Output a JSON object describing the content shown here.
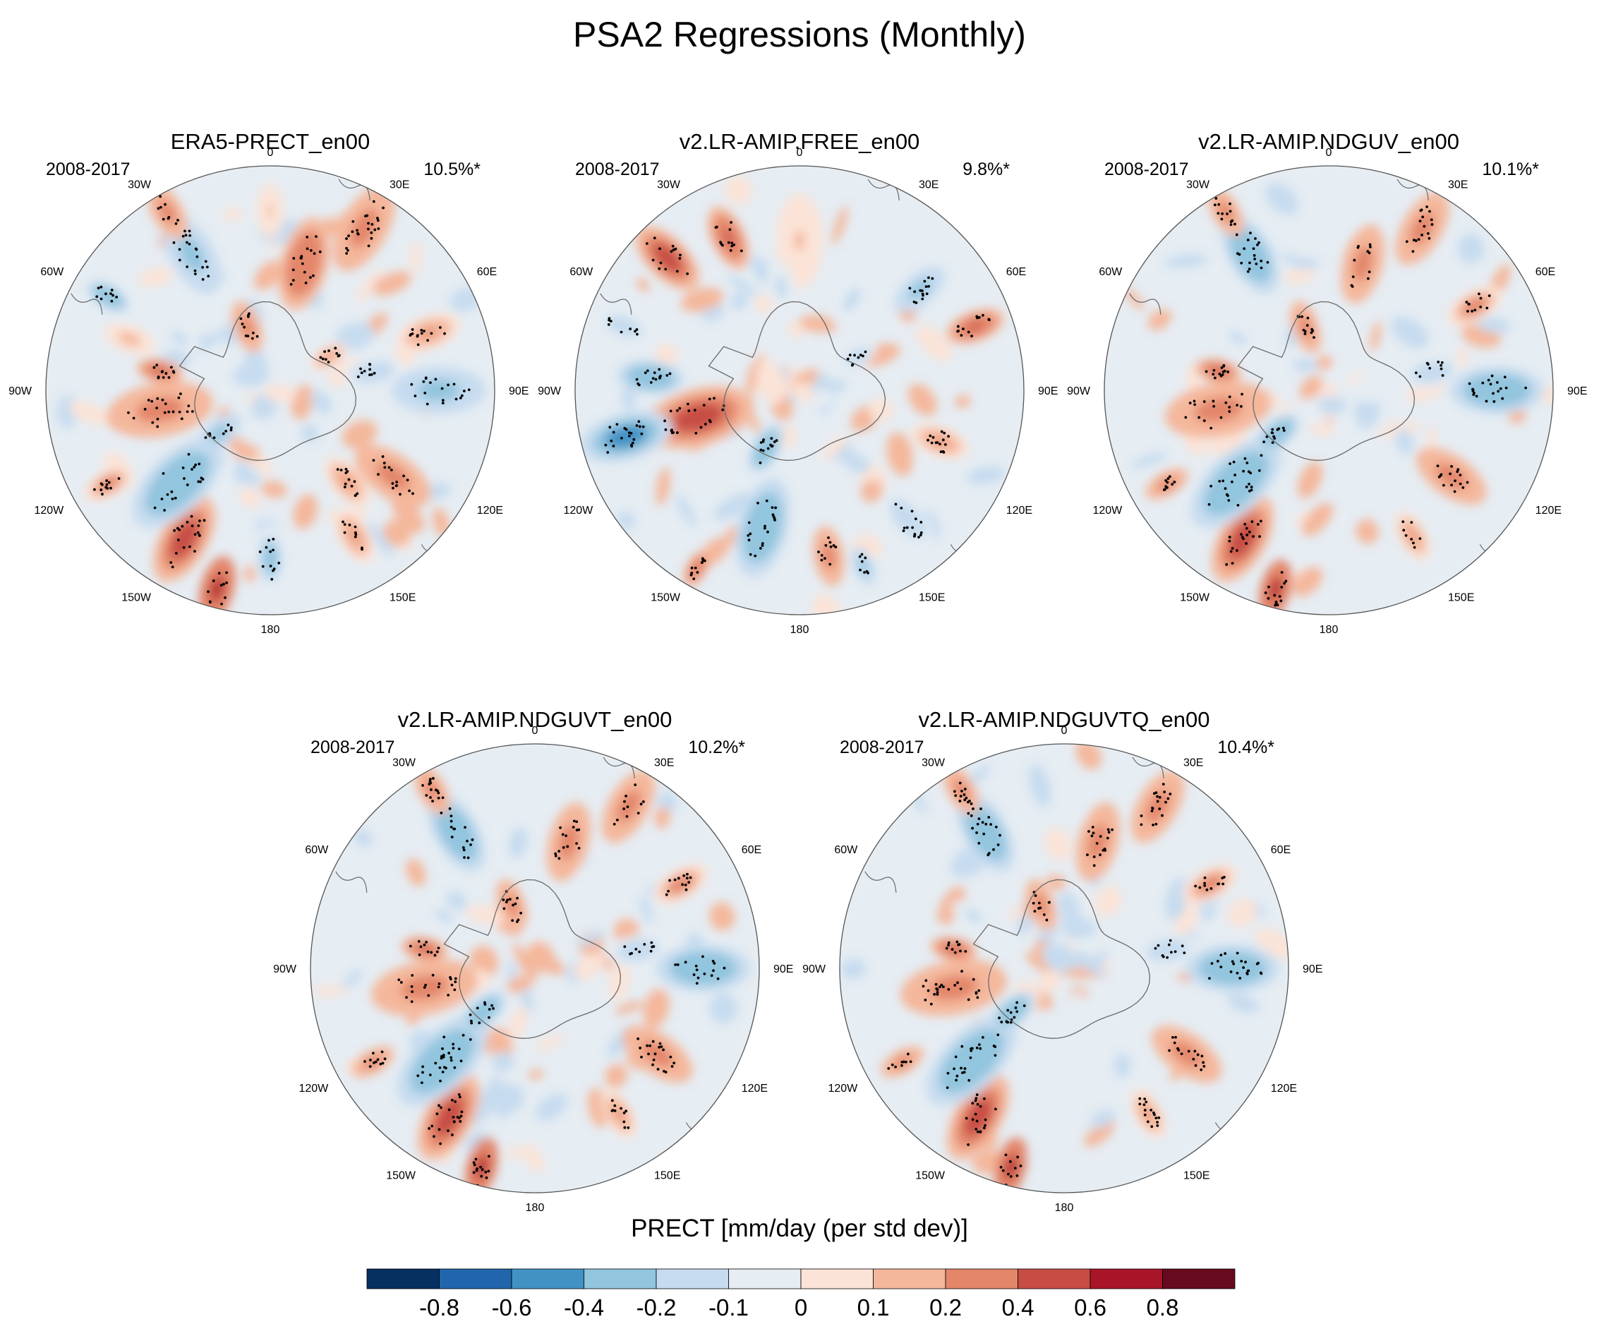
{
  "chart_data": {
    "type": "heatmap",
    "title": "PSA2 Regressions (Monthly)",
    "projection": "south-polar-stereographic",
    "longitude_labels": [
      "0",
      "30E",
      "60E",
      "90E",
      "120E",
      "150E",
      "180",
      "150W",
      "120W",
      "90W",
      "60W",
      "30W"
    ],
    "panels": [
      {
        "name": "ERA5-PRECT_en00",
        "period": "2008-2017",
        "variance_explained": "10.5%*",
        "anomalies": [
          {
            "lon": 30,
            "lat": -40,
            "value": 0.3,
            "size": 14
          },
          {
            "lon": 70,
            "lat": -45,
            "value": 0.2,
            "size": 10
          },
          {
            "lon": 15,
            "lat": -55,
            "value": 0.35,
            "size": 14
          },
          {
            "lon": 90,
            "lat": -45,
            "value": -0.3,
            "size": 14
          },
          {
            "lon": 80,
            "lat": -62,
            "value": -0.2,
            "size": 9
          },
          {
            "lon": 125,
            "lat": -50,
            "value": 0.3,
            "size": 13
          },
          {
            "lon": 140,
            "lat": -58,
            "value": 0.2,
            "size": 9
          },
          {
            "lon": 150,
            "lat": -45,
            "value": 0.2,
            "size": 9
          },
          {
            "lon": -180,
            "lat": -45,
            "value": -0.25,
            "size": 10
          },
          {
            "lon": -150,
            "lat": -44,
            "value": 0.5,
            "size": 14
          },
          {
            "lon": -165,
            "lat": -35,
            "value": 0.6,
            "size": 10
          },
          {
            "lon": -135,
            "lat": -55,
            "value": -0.4,
            "size": 17
          },
          {
            "lon": -120,
            "lat": -40,
            "value": 0.25,
            "size": 8
          },
          {
            "lon": -100,
            "lat": -60,
            "value": 0.3,
            "size": 16
          },
          {
            "lon": -80,
            "lat": -60,
            "value": 0.45,
            "size": 7
          },
          {
            "lon": -70,
            "lat": -50,
            "value": 0.15,
            "size": 8
          },
          {
            "lon": -60,
            "lat": -40,
            "value": -0.35,
            "size": 7
          },
          {
            "lon": -30,
            "lat": -48,
            "value": -0.3,
            "size": 13
          },
          {
            "lon": -30,
            "lat": -35,
            "value": 0.3,
            "size": 9
          },
          {
            "lon": 0,
            "lat": -42,
            "value": 0.1,
            "size": 8
          },
          {
            "lon": -20,
            "lat": -72,
            "value": 0.3,
            "size": 8
          },
          {
            "lon": 60,
            "lat": -72,
            "value": 0.2,
            "size": 6
          },
          {
            "lon": -130,
            "lat": -72,
            "value": -0.3,
            "size": 8
          },
          {
            "lon": -60,
            "lat": -62,
            "value": -0.15,
            "size": 7
          }
        ]
      },
      {
        "name": "v2.LR-AMIP.FREE_en00",
        "period": "2008-2017",
        "variance_explained": "9.8%*",
        "anomalies": [
          {
            "lon": -45,
            "lat": -40,
            "value": 0.5,
            "size": 12
          },
          {
            "lon": -25,
            "lat": -45,
            "value": 0.45,
            "size": 10
          },
          {
            "lon": -105,
            "lat": -62,
            "value": 0.55,
            "size": 17
          },
          {
            "lon": -105,
            "lat": -42,
            "value": -0.5,
            "size": 14
          },
          {
            "lon": -85,
            "lat": -50,
            "value": -0.4,
            "size": 10
          },
          {
            "lon": -165,
            "lat": -52,
            "value": -0.4,
            "size": 15
          },
          {
            "lon": 170,
            "lat": -45,
            "value": 0.3,
            "size": 9
          },
          {
            "lon": -150,
            "lat": -35,
            "value": 0.35,
            "size": 6
          },
          {
            "lon": 70,
            "lat": -40,
            "value": 0.4,
            "size": 9
          },
          {
            "lon": 50,
            "lat": -48,
            "value": -0.3,
            "size": 9
          },
          {
            "lon": 110,
            "lat": -50,
            "value": 0.2,
            "size": 9
          },
          {
            "lon": 140,
            "lat": -45,
            "value": -0.2,
            "size": 10
          },
          {
            "lon": -150,
            "lat": -72,
            "value": -0.35,
            "size": 8
          },
          {
            "lon": 30,
            "lat": -62,
            "value": -0.15,
            "size": 9
          },
          {
            "lon": 0,
            "lat": -50,
            "value": 0.1,
            "size": 14
          },
          {
            "lon": -10,
            "lat": -62,
            "value": -0.15,
            "size": 8
          },
          {
            "lon": 60,
            "lat": -72,
            "value": -0.2,
            "size": 6
          },
          {
            "lon": 160,
            "lat": -40,
            "value": -0.3,
            "size": 6
          },
          {
            "lon": -70,
            "lat": -40,
            "value": -0.2,
            "size": 8
          }
        ]
      },
      {
        "name": "v2.LR-AMIP.NDGUV_en00",
        "period": "2008-2017",
        "variance_explained": "10.1%*",
        "anomalies": [
          {
            "lon": 30,
            "lat": -40,
            "value": 0.3,
            "size": 12
          },
          {
            "lon": 15,
            "lat": -55,
            "value": 0.3,
            "size": 12
          },
          {
            "lon": 60,
            "lat": -45,
            "value": 0.25,
            "size": 9
          },
          {
            "lon": 90,
            "lat": -45,
            "value": -0.35,
            "size": 14
          },
          {
            "lon": 125,
            "lat": -50,
            "value": 0.3,
            "size": 12
          },
          {
            "lon": -150,
            "lat": -44,
            "value": 0.5,
            "size": 14
          },
          {
            "lon": -165,
            "lat": -35,
            "value": 0.6,
            "size": 9
          },
          {
            "lon": -135,
            "lat": -55,
            "value": -0.4,
            "size": 17
          },
          {
            "lon": -100,
            "lat": -60,
            "value": 0.3,
            "size": 16
          },
          {
            "lon": -80,
            "lat": -60,
            "value": 0.45,
            "size": 7
          },
          {
            "lon": -30,
            "lat": -48,
            "value": -0.35,
            "size": 13
          },
          {
            "lon": -30,
            "lat": -35,
            "value": 0.3,
            "size": 8
          },
          {
            "lon": -20,
            "lat": -72,
            "value": 0.3,
            "size": 8
          },
          {
            "lon": -130,
            "lat": -72,
            "value": -0.35,
            "size": 8
          },
          {
            "lon": 150,
            "lat": -45,
            "value": 0.2,
            "size": 8
          },
          {
            "lon": -120,
            "lat": -40,
            "value": 0.3,
            "size": 7
          },
          {
            "lon": 80,
            "lat": -62,
            "value": -0.2,
            "size": 9
          },
          {
            "lon": -60,
            "lat": -62,
            "value": -0.15,
            "size": 7
          }
        ]
      },
      {
        "name": "v2.LR-AMIP.NDGUVT_en00",
        "period": "2008-2017",
        "variance_explained": "10.2%*",
        "anomalies": [
          {
            "lon": 30,
            "lat": -40,
            "value": 0.3,
            "size": 12
          },
          {
            "lon": 15,
            "lat": -55,
            "value": 0.3,
            "size": 12
          },
          {
            "lon": 60,
            "lat": -45,
            "value": 0.25,
            "size": 9
          },
          {
            "lon": 90,
            "lat": -45,
            "value": -0.35,
            "size": 14
          },
          {
            "lon": 125,
            "lat": -50,
            "value": 0.3,
            "size": 12
          },
          {
            "lon": -150,
            "lat": -44,
            "value": 0.5,
            "size": 14
          },
          {
            "lon": -165,
            "lat": -35,
            "value": 0.6,
            "size": 9
          },
          {
            "lon": -135,
            "lat": -55,
            "value": -0.4,
            "size": 17
          },
          {
            "lon": -100,
            "lat": -60,
            "value": 0.3,
            "size": 16
          },
          {
            "lon": -80,
            "lat": -60,
            "value": 0.45,
            "size": 7
          },
          {
            "lon": -30,
            "lat": -48,
            "value": -0.35,
            "size": 13
          },
          {
            "lon": -30,
            "lat": -35,
            "value": 0.3,
            "size": 8
          },
          {
            "lon": -20,
            "lat": -72,
            "value": 0.3,
            "size": 8
          },
          {
            "lon": -130,
            "lat": -72,
            "value": -0.35,
            "size": 8
          },
          {
            "lon": 150,
            "lat": -45,
            "value": 0.2,
            "size": 8
          },
          {
            "lon": -120,
            "lat": -40,
            "value": 0.3,
            "size": 7
          },
          {
            "lon": 80,
            "lat": -62,
            "value": -0.2,
            "size": 9
          },
          {
            "lon": -60,
            "lat": -62,
            "value": -0.15,
            "size": 7
          }
        ]
      },
      {
        "name": "v2.LR-AMIP.NDGUVTQ_en00",
        "period": "2008-2017",
        "variance_explained": "10.4%*",
        "anomalies": [
          {
            "lon": 30,
            "lat": -40,
            "value": 0.3,
            "size": 12
          },
          {
            "lon": 15,
            "lat": -55,
            "value": 0.3,
            "size": 12
          },
          {
            "lon": 60,
            "lat": -45,
            "value": 0.25,
            "size": 9
          },
          {
            "lon": 90,
            "lat": -45,
            "value": -0.35,
            "size": 14
          },
          {
            "lon": 125,
            "lat": -50,
            "value": 0.3,
            "size": 12
          },
          {
            "lon": -150,
            "lat": -44,
            "value": 0.5,
            "size": 14
          },
          {
            "lon": -165,
            "lat": -35,
            "value": 0.6,
            "size": 9
          },
          {
            "lon": -135,
            "lat": -55,
            "value": -0.4,
            "size": 17
          },
          {
            "lon": -100,
            "lat": -60,
            "value": 0.3,
            "size": 16
          },
          {
            "lon": -80,
            "lat": -60,
            "value": 0.45,
            "size": 7
          },
          {
            "lon": -30,
            "lat": -48,
            "value": -0.35,
            "size": 13
          },
          {
            "lon": -30,
            "lat": -35,
            "value": 0.3,
            "size": 8
          },
          {
            "lon": -20,
            "lat": -72,
            "value": 0.3,
            "size": 8
          },
          {
            "lon": -130,
            "lat": -72,
            "value": -0.35,
            "size": 8
          },
          {
            "lon": 150,
            "lat": -45,
            "value": 0.2,
            "size": 8
          },
          {
            "lon": -120,
            "lat": -40,
            "value": 0.3,
            "size": 7
          },
          {
            "lon": 80,
            "lat": -62,
            "value": -0.2,
            "size": 9
          },
          {
            "lon": -60,
            "lat": -62,
            "value": -0.15,
            "size": 7
          }
        ]
      }
    ],
    "colorbar": {
      "title": "PRECT [mm/day (per std dev)]",
      "tick_labels": [
        "-0.8",
        "-0.6",
        "-0.4",
        "-0.2",
        "-0.1",
        "0",
        "0.1",
        "0.2",
        "0.4",
        "0.6",
        "0.8"
      ],
      "levels": [
        -0.8,
        -0.6,
        -0.4,
        -0.2,
        -0.1,
        0,
        0.1,
        0.2,
        0.4,
        0.6,
        0.8
      ],
      "colors": [
        "#06305f",
        "#2166ac",
        "#4392c4",
        "#92c5de",
        "#c6dbef",
        "#e6edf3",
        "#fbe3d7",
        "#f4b79b",
        "#e3866a",
        "#c74d44",
        "#a81528",
        "#670a1f"
      ]
    }
  }
}
